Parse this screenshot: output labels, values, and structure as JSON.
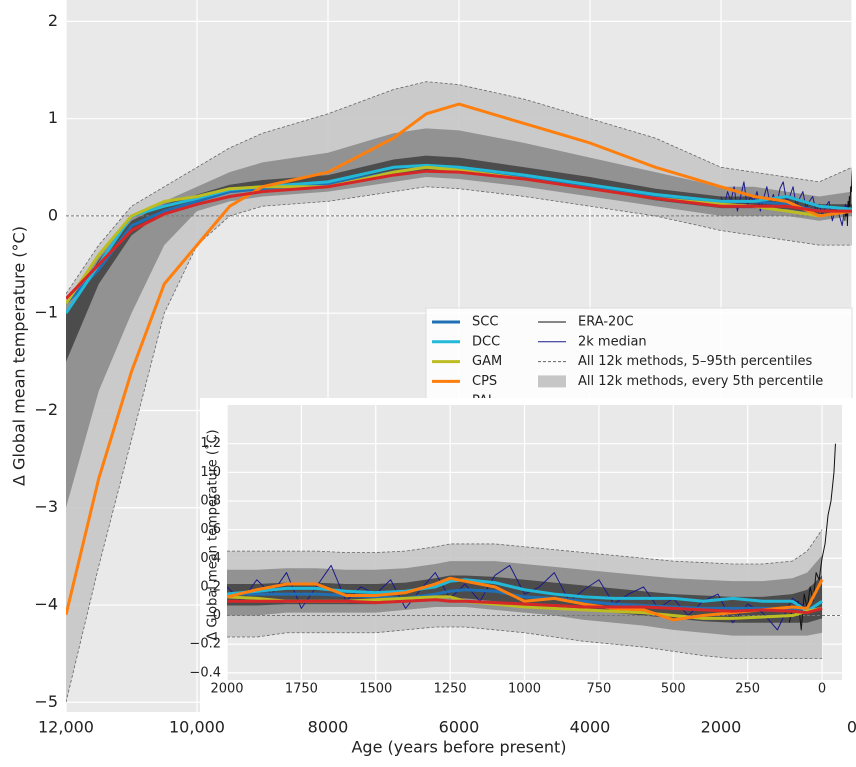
{
  "chart_data": [
    {
      "type": "line",
      "xlabel": "Age (years before present)",
      "ylabel": "Δ Global mean temperature (°C)",
      "xlim": [
        12000,
        0
      ],
      "ylim": [
        -5.1,
        2.22
      ],
      "xticks": [
        {
          "value": 12000,
          "label": "12,000"
        },
        {
          "value": 10000,
          "label": "10,000"
        },
        8000,
        6000,
        4000,
        2000,
        0
      ],
      "yticks": [
        2,
        1,
        0,
        {
          "value": -1,
          "label": "−1"
        },
        {
          "value": -2,
          "label": "−2"
        },
        {
          "value": -3,
          "label": "−3"
        },
        {
          "value": -4,
          "label": "−4"
        },
        {
          "value": -5,
          "label": "−5"
        }
      ],
      "grid": true,
      "hline": 0,
      "x": [
        12000,
        11500,
        11000,
        10500,
        10000,
        9500,
        9000,
        8000,
        7000,
        6500,
        6000,
        5000,
        4000,
        3000,
        2000,
        1500,
        1000,
        500,
        0
      ],
      "series": [
        {
          "name": "SCC",
          "color": "#1f6fb4",
          "values": [
            -0.9,
            -0.55,
            -0.1,
            0.05,
            0.15,
            0.25,
            0.28,
            0.33,
            0.45,
            0.5,
            0.5,
            0.4,
            0.3,
            0.2,
            0.15,
            0.15,
            0.12,
            0.05,
            0.05
          ]
        },
        {
          "name": "DCC",
          "color": "#22b8d8",
          "values": [
            -1.0,
            -0.5,
            0.0,
            0.1,
            0.18,
            0.27,
            0.3,
            0.35,
            0.5,
            0.52,
            0.5,
            0.42,
            0.32,
            0.22,
            0.15,
            0.15,
            0.2,
            0.1,
            0.07
          ]
        },
        {
          "name": "GAM",
          "color": "#bcbd22",
          "values": [
            -0.9,
            -0.4,
            0.0,
            0.15,
            0.2,
            0.28,
            0.3,
            0.3,
            0.45,
            0.5,
            0.47,
            0.38,
            0.28,
            0.18,
            0.12,
            0.1,
            0.05,
            0.0,
            0.05
          ]
        },
        {
          "name": "CPS",
          "color": "#ff7f0e",
          "values": [
            -4.1,
            -2.7,
            -1.6,
            -0.7,
            -0.3,
            0.1,
            0.3,
            0.45,
            0.8,
            1.05,
            1.15,
            0.95,
            0.75,
            0.5,
            0.3,
            0.2,
            0.15,
            0.0,
            0.05
          ]
        },
        {
          "name": "PAI",
          "color": "#d62728",
          "values": [
            -0.85,
            -0.5,
            -0.15,
            0.02,
            0.12,
            0.2,
            0.25,
            0.3,
            0.42,
            0.46,
            0.45,
            0.38,
            0.28,
            0.18,
            0.1,
            0.1,
            0.1,
            0.05,
            0.05
          ]
        },
        {
          "name": "ERA-20C",
          "color": "#111111",
          "x": [
            110,
            100,
            90,
            80,
            70,
            60,
            50,
            40,
            30,
            20,
            10,
            0,
            -10,
            -20,
            -30,
            -40,
            -45
          ],
          "values": [
            -0.05,
            0.05,
            0.0,
            0.1,
            -0.1,
            0.15,
            0.05,
            0.2,
            0.1,
            0.3,
            0.25,
            0.4,
            0.5,
            0.7,
            0.8,
            1.0,
            1.2
          ]
        },
        {
          "name": " 2k median",
          "color": "#1a1a8c",
          "x": [
            2000,
            1950,
            1900,
            1850,
            1800,
            1750,
            1700,
            1650,
            1600,
            1550,
            1500,
            1450,
            1400,
            1350,
            1300,
            1250,
            1200,
            1150,
            1100,
            1050,
            1000,
            950,
            900,
            850,
            800,
            750,
            700,
            650,
            600,
            550,
            500,
            450,
            400,
            350,
            300,
            250,
            200,
            150,
            100,
            50
          ],
          "values": [
            0.2,
            0.1,
            0.25,
            0.15,
            0.3,
            0.05,
            0.2,
            0.35,
            0.1,
            0.2,
            0.15,
            0.25,
            0.05,
            0.18,
            0.3,
            0.12,
            0.22,
            0.1,
            0.28,
            0.35,
            0.15,
            0.2,
            0.3,
            0.1,
            0.18,
            0.25,
            0.08,
            0.15,
            0.2,
            0.05,
            0.12,
            0.0,
            0.1,
            0.15,
            -0.05,
            0.08,
            0.02,
            -0.1,
            0.12,
            0.05
          ]
        }
      ],
      "percentile_lines": {
        "name": "All 12k methods, 5–95th percentiles",
        "color": "#666666",
        "lower": [
          -5,
          -3.6,
          -2.3,
          -1.0,
          -0.3,
          0.0,
          0.1,
          0.15,
          0.25,
          0.3,
          0.28,
          0.2,
          0.1,
          0.0,
          -0.15,
          -0.2,
          -0.25,
          -0.3,
          -0.3
        ],
        "upper": [
          -0.8,
          -0.3,
          0.1,
          0.3,
          0.5,
          0.7,
          0.85,
          1.05,
          1.3,
          1.38,
          1.35,
          1.2,
          1.0,
          0.8,
          0.5,
          0.45,
          0.4,
          0.35,
          0.5
        ]
      },
      "percentile_bands": {
        "name": "All 12k methods, every 5th percentile",
        "color": "#c6c6c6",
        "bands": [
          {
            "color": "#8c8c8c",
            "lower": [
              -3.0,
              -1.8,
              -1.0,
              -0.3,
              0.05,
              0.15,
              0.2,
              0.25,
              0.35,
              0.4,
              0.38,
              0.3,
              0.2,
              0.1,
              0.0,
              0.0,
              0.0,
              -0.05,
              0.0
            ],
            "upper": [
              -0.9,
              -0.4,
              0.0,
              0.15,
              0.3,
              0.45,
              0.55,
              0.65,
              0.85,
              0.9,
              0.88,
              0.75,
              0.6,
              0.45,
              0.3,
              0.3,
              0.25,
              0.2,
              0.25
            ]
          },
          {
            "color": "#454545",
            "lower": [
              -1.5,
              -0.7,
              -0.2,
              0.05,
              0.15,
              0.25,
              0.27,
              0.3,
              0.42,
              0.47,
              0.45,
              0.37,
              0.27,
              0.16,
              0.08,
              0.08,
              0.07,
              0.02,
              0.03
            ],
            "upper": [
              -1.0,
              -0.45,
              -0.05,
              0.12,
              0.22,
              0.32,
              0.37,
              0.42,
              0.58,
              0.62,
              0.6,
              0.5,
              0.4,
              0.28,
              0.2,
              0.2,
              0.18,
              0.12,
              0.12
            ]
          }
        ]
      }
    },
    {
      "type": "line",
      "ylabel": "Δ Global mean temperature (˚C)",
      "xlim": [
        2000,
        -67
      ],
      "ylim": [
        -0.45,
        1.47
      ],
      "xticks": [
        2000,
        1750,
        1500,
        1250,
        1000,
        750,
        500,
        250,
        0
      ],
      "yticks": [
        {
          "value": -0.4,
          "label": "−0.4"
        },
        {
          "value": -0.2,
          "label": "−0.2"
        },
        0,
        0.2,
        0.4,
        0.6,
        0.8,
        {
          "value": 1.0,
          "label": "1.0"
        },
        1.2
      ],
      "grid": true,
      "hline": 0,
      "x": [
        2000,
        1900,
        1800,
        1700,
        1600,
        1500,
        1400,
        1300,
        1250,
        1200,
        1100,
        1000,
        900,
        800,
        700,
        600,
        500,
        400,
        300,
        200,
        100,
        50,
        0
      ],
      "series": [
        {
          "color": "#1f6fb4",
          "values": [
            0.15,
            0.15,
            0.15,
            0.15,
            0.14,
            0.13,
            0.12,
            0.15,
            0.17,
            0.18,
            0.17,
            0.13,
            0.12,
            0.1,
            0.08,
            0.07,
            0.06,
            0.05,
            0.05,
            0.05,
            0.04,
            0.03,
            0.05
          ]
        },
        {
          "color": "#22b8d8",
          "values": [
            0.15,
            0.17,
            0.19,
            0.19,
            0.17,
            0.16,
            0.17,
            0.2,
            0.24,
            0.25,
            0.23,
            0.18,
            0.15,
            0.13,
            0.12,
            0.12,
            0.12,
            0.1,
            0.12,
            0.1,
            0.1,
            0.03,
            0.1
          ]
        },
        {
          "color": "#bcbd22",
          "values": [
            0.13,
            0.12,
            0.1,
            0.1,
            0.1,
            0.11,
            0.12,
            0.13,
            0.13,
            0.1,
            0.08,
            0.06,
            0.05,
            0.04,
            0.03,
            0.02,
            0.0,
            -0.02,
            -0.02,
            -0.01,
            0.0,
            0.03,
            0.05
          ]
        },
        {
          "color": "#ff7f0e",
          "values": [
            0.13,
            0.18,
            0.22,
            0.22,
            0.14,
            0.14,
            0.16,
            0.22,
            0.26,
            0.24,
            0.2,
            0.1,
            0.12,
            0.08,
            0.05,
            0.04,
            -0.03,
            0.0,
            0.02,
            0.04,
            0.06,
            0.05,
            0.25
          ]
        },
        {
          "color": "#d62728",
          "values": [
            0.1,
            0.1,
            0.1,
            0.1,
            0.1,
            0.09,
            0.1,
            0.11,
            0.1,
            0.1,
            0.09,
            0.08,
            0.07,
            0.06,
            0.06,
            0.06,
            0.05,
            0.04,
            0.03,
            0.04,
            0.03,
            0.02,
            0.05
          ]
        }
      ],
      "percentile_lines": {
        "color": "#666666",
        "lower": [
          -0.15,
          -0.15,
          -0.12,
          -0.12,
          -0.12,
          -0.12,
          -0.1,
          -0.08,
          -0.08,
          -0.08,
          -0.1,
          -0.12,
          -0.15,
          -0.18,
          -0.2,
          -0.22,
          -0.25,
          -0.28,
          -0.3,
          -0.3,
          -0.3,
          -0.3,
          -0.3
        ],
        "upper": [
          0.45,
          0.45,
          0.45,
          0.45,
          0.44,
          0.44,
          0.45,
          0.48,
          0.5,
          0.5,
          0.5,
          0.48,
          0.46,
          0.44,
          0.42,
          0.4,
          0.38,
          0.37,
          0.36,
          0.36,
          0.38,
          0.45,
          0.6
        ]
      },
      "percentile_bands": {
        "color": "#c6c6c6",
        "bands": [
          {
            "color": "#8c8c8c",
            "lower": [
              0.0,
              0.0,
              0.02,
              0.02,
              0.02,
              0.02,
              0.04,
              0.06,
              0.06,
              0.06,
              0.04,
              0.02,
              0.0,
              -0.03,
              -0.05,
              -0.07,
              -0.1,
              -0.12,
              -0.14,
              -0.14,
              -0.14,
              -0.14,
              -0.12
            ],
            "upper": [
              0.32,
              0.32,
              0.33,
              0.33,
              0.32,
              0.32,
              0.33,
              0.36,
              0.38,
              0.38,
              0.38,
              0.36,
              0.34,
              0.32,
              0.3,
              0.28,
              0.26,
              0.25,
              0.24,
              0.24,
              0.26,
              0.3,
              0.42
            ]
          },
          {
            "color": "#454545",
            "lower": [
              0.07,
              0.07,
              0.08,
              0.08,
              0.08,
              0.08,
              0.1,
              0.12,
              0.12,
              0.12,
              0.1,
              0.08,
              0.06,
              0.04,
              0.02,
              0.0,
              -0.02,
              -0.04,
              -0.05,
              -0.05,
              -0.05,
              -0.05,
              -0.02
            ],
            "upper": [
              0.22,
              0.22,
              0.23,
              0.23,
              0.22,
              0.22,
              0.23,
              0.26,
              0.28,
              0.28,
              0.27,
              0.25,
              0.23,
              0.21,
              0.19,
              0.17,
              0.15,
              0.14,
              0.13,
              0.13,
              0.15,
              0.18,
              0.28
            ]
          }
        ]
      }
    }
  ]
}
